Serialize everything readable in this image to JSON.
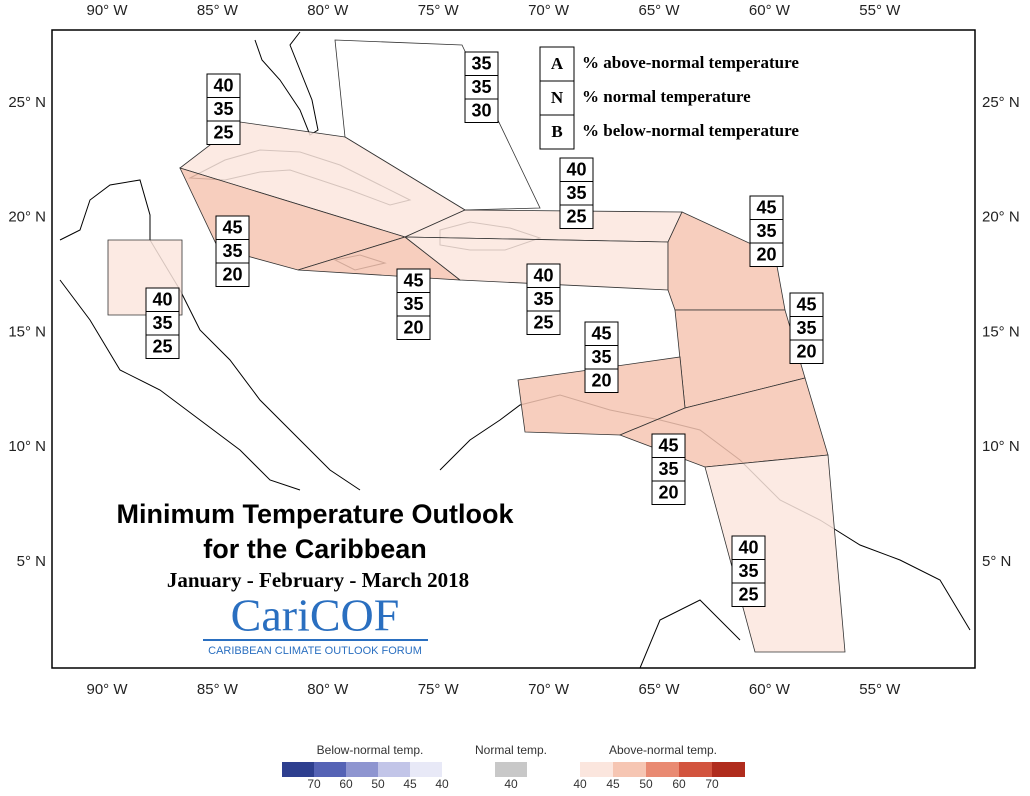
{
  "lon_labels": [
    "90° W",
    "85° W",
    "80° W",
    "75° W",
    "70° W",
    "65° W",
    "60° W",
    "55° W"
  ],
  "lat_labels": [
    "25° N",
    "20° N",
    "15° N",
    "10° N",
    "5° N"
  ],
  "legend_key": [
    {
      "letter": "A",
      "text": "% above-normal temperature"
    },
    {
      "letter": "N",
      "text": "% normal temperature"
    },
    {
      "letter": "B",
      "text": "% below-normal temperature"
    }
  ],
  "regions": [
    {
      "A": 35,
      "N": 35,
      "B": 30
    },
    {
      "A": 40,
      "N": 35,
      "B": 25
    },
    {
      "A": 45,
      "N": 35,
      "B": 20
    },
    {
      "A": 45,
      "N": 35,
      "B": 20
    },
    {
      "A": 40,
      "N": 35,
      "B": 25
    },
    {
      "A": 40,
      "N": 35,
      "B": 25
    },
    {
      "A": 45,
      "N": 35,
      "B": 20
    },
    {
      "A": 45,
      "N": 35,
      "B": 20
    },
    {
      "A": 45,
      "N": 35,
      "B": 20
    },
    {
      "A": 45,
      "N": 35,
      "B": 20
    },
    {
      "A": 40,
      "N": 35,
      "B": 25
    },
    {
      "A": 40,
      "N": 35,
      "B": 25
    }
  ],
  "title": "Minimum Temperature Outlook",
  "title2": "for the Caribbean",
  "period": "January - February - March 2018",
  "logo": "CariCOF",
  "logo_sub": "CARIBBEAN CLIMATE OUTLOOK FORUM",
  "colorbar": {
    "below": {
      "label": "Below-normal temp.",
      "ticks": [
        70,
        60,
        50,
        45,
        40
      ],
      "colors": [
        "#2e3f8f",
        "#5563b5",
        "#8e95d0",
        "#c2c5e8",
        "#e8e9f7"
      ]
    },
    "normal": {
      "label": "Normal temp.",
      "ticks": [
        40
      ],
      "colors": [
        "#c8c8c8"
      ]
    },
    "above": {
      "label": "Above-normal temp.",
      "ticks": [
        40,
        45,
        50,
        60,
        70
      ],
      "colors": [
        "#fbe6de",
        "#f6c6b3",
        "#e98a72",
        "#d2543e",
        "#b02c1d"
      ]
    }
  }
}
